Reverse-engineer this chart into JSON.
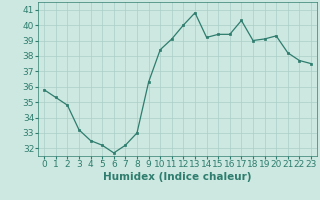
{
  "x": [
    0,
    1,
    2,
    3,
    4,
    5,
    6,
    7,
    8,
    9,
    10,
    11,
    12,
    13,
    14,
    15,
    16,
    17,
    18,
    19,
    20,
    21,
    22,
    23
  ],
  "y": [
    35.8,
    35.3,
    34.8,
    33.2,
    32.5,
    32.2,
    31.7,
    32.2,
    33.0,
    36.3,
    38.4,
    39.1,
    40.0,
    40.8,
    39.2,
    39.4,
    39.4,
    40.3,
    39.0,
    39.1,
    39.3,
    38.2,
    37.7,
    37.5
  ],
  "line_color": "#2e7d6e",
  "marker": "s",
  "marker_size": 2.0,
  "bg_color": "#cce8e0",
  "grid_color": "#aacfc7",
  "xlabel": "Humidex (Indice chaleur)",
  "ylim": [
    31.5,
    41.5
  ],
  "yticks": [
    32,
    33,
    34,
    35,
    36,
    37,
    38,
    39,
    40,
    41
  ],
  "xticks": [
    0,
    1,
    2,
    3,
    4,
    5,
    6,
    7,
    8,
    9,
    10,
    11,
    12,
    13,
    14,
    15,
    16,
    17,
    18,
    19,
    20,
    21,
    22,
    23
  ],
  "tick_fontsize": 6.5,
  "xlabel_fontsize": 7.5
}
